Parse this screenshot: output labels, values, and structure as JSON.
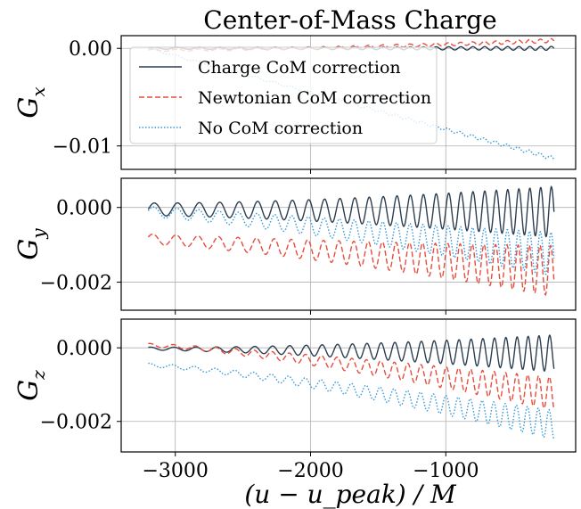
{
  "chart_data": {
    "type": "line",
    "title": "Center-of-Mass Charge",
    "xlabel": "(u − u_peak) / M",
    "xlim": [
      -3400,
      -40
    ],
    "xticks": [
      -3000,
      -2000,
      -1000
    ],
    "xtick_labels": [
      "−3000",
      "−2000",
      "−1000"
    ],
    "legend": {
      "placement": "upper-left",
      "panel": "G_x",
      "entries": [
        {
          "label": "Charge CoM correction",
          "color": "#2c3e50",
          "dash": "solid"
        },
        {
          "label": "Newtonian CoM correction",
          "color": "#e74c3c",
          "dash": "dashed"
        },
        {
          "label": "No CoM correction",
          "color": "#3498db",
          "dash": "dotted"
        }
      ]
    },
    "grid": true,
    "panels": [
      {
        "ylabel_main": "G",
        "ylabel_sub": "x",
        "ylim": [
          -0.0124,
          0.0013
        ],
        "yticks": [
          0.0,
          -0.01
        ],
        "ytick_labels": [
          "0.00",
          "−0.01"
        ],
        "series": [
          {
            "name": "Charge CoM correction",
            "t_start": -3200,
            "t_end": -200,
            "base_start": 0.0,
            "base_end": 0.0,
            "curve": 0.0,
            "amp_start": 0.0001,
            "amp_end": 0.0002,
            "phase": 0.0
          },
          {
            "name": "Newtonian CoM correction",
            "t_start": -3200,
            "t_end": -200,
            "base_start": -0.0002,
            "base_end": 0.0008,
            "curve": 1.6,
            "amp_start": 0.0001,
            "amp_end": 0.0002,
            "phase": 0.2
          },
          {
            "name": "No CoM correction",
            "t_start": -3200,
            "t_end": -200,
            "base_start": 0.0,
            "base_end": -0.0113,
            "curve": 1.0,
            "amp_start": 0.0001,
            "amp_end": 0.0002,
            "phase": 0.4
          }
        ]
      },
      {
        "ylabel_main": "G",
        "ylabel_sub": "y",
        "ylim": [
          -0.00275,
          0.00078
        ],
        "yticks": [
          0.0,
          -0.002
        ],
        "ytick_labels": [
          "0.000",
          "−0.002"
        ],
        "series": [
          {
            "name": "Charge CoM correction",
            "t_start": -3200,
            "t_end": -200,
            "base_start": -5e-05,
            "base_end": -0.00012,
            "curve": 1.0,
            "amp_start": 0.00017,
            "amp_end": 0.00068,
            "phase": 0.0
          },
          {
            "name": "Newtonian CoM correction",
            "t_start": -3200,
            "t_end": -200,
            "base_start": -0.00085,
            "base_end": -0.0017,
            "curve": 1.2,
            "amp_start": 0.00014,
            "amp_end": 0.00068,
            "phase": 0.4
          },
          {
            "name": "No CoM correction",
            "t_start": -3200,
            "t_end": -200,
            "base_start": -0.00012,
            "base_end": -0.00125,
            "curve": 1.2,
            "amp_start": 0.00014,
            "amp_end": 0.00058,
            "phase": 0.2
          }
        ]
      },
      {
        "ylabel_main": "G",
        "ylabel_sub": "z",
        "ylim": [
          -0.00283,
          0.00078
        ],
        "yticks": [
          0.0,
          -0.002
        ],
        "ytick_labels": [
          "0.000",
          "−0.002"
        ],
        "series": [
          {
            "name": "Charge CoM correction",
            "t_start": -3200,
            "t_end": -200,
            "base_start": -2e-05,
            "base_end": -0.00015,
            "curve": 1.0,
            "amp_start": 4e-05,
            "amp_end": 0.0005,
            "phase": 1.0
          },
          {
            "name": "Newtonian CoM correction",
            "t_start": -3200,
            "t_end": -200,
            "base_start": 7e-05,
            "base_end": -0.00125,
            "curve": 1.3,
            "amp_start": 5e-05,
            "amp_end": 0.00045,
            "phase": 1.2
          },
          {
            "name": "No CoM correction",
            "t_start": -3200,
            "t_end": -200,
            "base_start": -0.00047,
            "base_end": -0.0021,
            "curve": 1.3,
            "amp_start": 5e-05,
            "amp_end": 0.0004,
            "phase": 1.4
          }
        ]
      }
    ]
  }
}
